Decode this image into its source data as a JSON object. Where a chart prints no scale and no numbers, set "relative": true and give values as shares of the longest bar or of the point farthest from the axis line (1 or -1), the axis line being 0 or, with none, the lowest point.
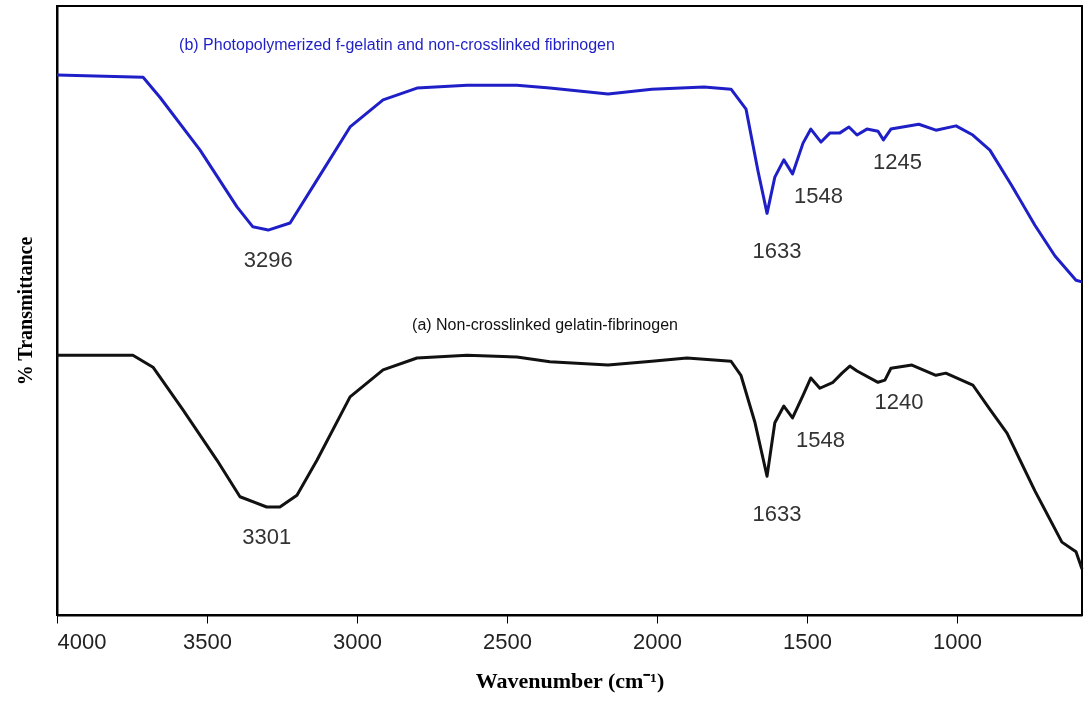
{
  "chart_data": {
    "type": "line",
    "relative": true,
    "xlabel": "Wavenumber (cm⁻¹)",
    "ylabel": "% Transmittance",
    "xlim": [
      4000,
      583
    ],
    "xticks": [
      4000,
      3500,
      3000,
      2500,
      2000,
      1500,
      1000
    ],
    "grid": false,
    "marker": "none",
    "line_style": "solid",
    "series": [
      {
        "name": "(b) Photopolymerized f-gelatin and non-crosslinked fibrinogen",
        "color": "#1f1fc8",
        "x": [
          4000,
          3713,
          3657,
          3523,
          3400,
          3347,
          3296,
          3223,
          3133,
          3023,
          2913,
          2800,
          2633,
          2467,
          2357,
          2163,
          2017,
          1843,
          1753,
          1703,
          1663,
          1633,
          1607,
          1577,
          1548,
          1513,
          1487,
          1453,
          1423,
          1390,
          1360,
          1333,
          1300,
          1263,
          1245,
          1220,
          1127,
          1070,
          1003,
          947,
          890,
          820,
          740,
          673,
          603,
          583
        ],
        "values": [
          1.0,
          0.996,
          0.959,
          0.861,
          0.756,
          0.719,
          0.713,
          0.726,
          0.806,
          0.904,
          0.954,
          0.976,
          0.981,
          0.981,
          0.976,
          0.965,
          0.974,
          0.978,
          0.974,
          0.937,
          0.822,
          0.744,
          0.811,
          0.843,
          0.817,
          0.874,
          0.9,
          0.876,
          0.893,
          0.893,
          0.904,
          0.889,
          0.9,
          0.896,
          0.88,
          0.9,
          0.909,
          0.898,
          0.906,
          0.889,
          0.861,
          0.798,
          0.722,
          0.665,
          0.62,
          0.617
        ]
      },
      {
        "name": "(a) Non-crosslinked gelatin-fibrinogen",
        "color": "#111111",
        "x": [
          4000,
          3747,
          3680,
          3580,
          3467,
          3390,
          3301,
          3257,
          3200,
          3133,
          3023,
          2913,
          2800,
          2633,
          2467,
          2357,
          2163,
          2017,
          1900,
          1753,
          1720,
          1673,
          1633,
          1607,
          1577,
          1548,
          1513,
          1487,
          1457,
          1413,
          1383,
          1357,
          1333,
          1263,
          1240,
          1220,
          1150,
          1070,
          1037,
          947,
          890,
          833,
          740,
          650,
          603,
          583
        ],
        "values": [
          0.481,
          0.481,
          0.459,
          0.38,
          0.287,
          0.219,
          0.2,
          0.2,
          0.222,
          0.287,
          0.404,
          0.454,
          0.476,
          0.481,
          0.478,
          0.469,
          0.463,
          0.47,
          0.476,
          0.47,
          0.444,
          0.356,
          0.257,
          0.356,
          0.387,
          0.365,
          0.407,
          0.439,
          0.42,
          0.431,
          0.448,
          0.461,
          0.452,
          0.431,
          0.435,
          0.457,
          0.463,
          0.444,
          0.448,
          0.426,
          0.381,
          0.337,
          0.23,
          0.135,
          0.117,
          0.085
        ]
      }
    ],
    "annotations": [
      {
        "text": "3296",
        "x": 3296,
        "y": 0.713
      },
      {
        "text": "1633",
        "x": 1633,
        "y": 0.744
      },
      {
        "text": "1548",
        "x": 1548,
        "y": 0.817
      },
      {
        "text": "1245",
        "x": 1245,
        "y": 0.88
      },
      {
        "text": "3301",
        "x": 3301,
        "y": 0.2
      },
      {
        "text": "1633",
        "x": 1633,
        "y": 0.257
      },
      {
        "text": "1548",
        "x": 1548,
        "y": 0.365
      },
      {
        "text": "1240",
        "x": 1240,
        "y": 0.435
      }
    ]
  }
}
